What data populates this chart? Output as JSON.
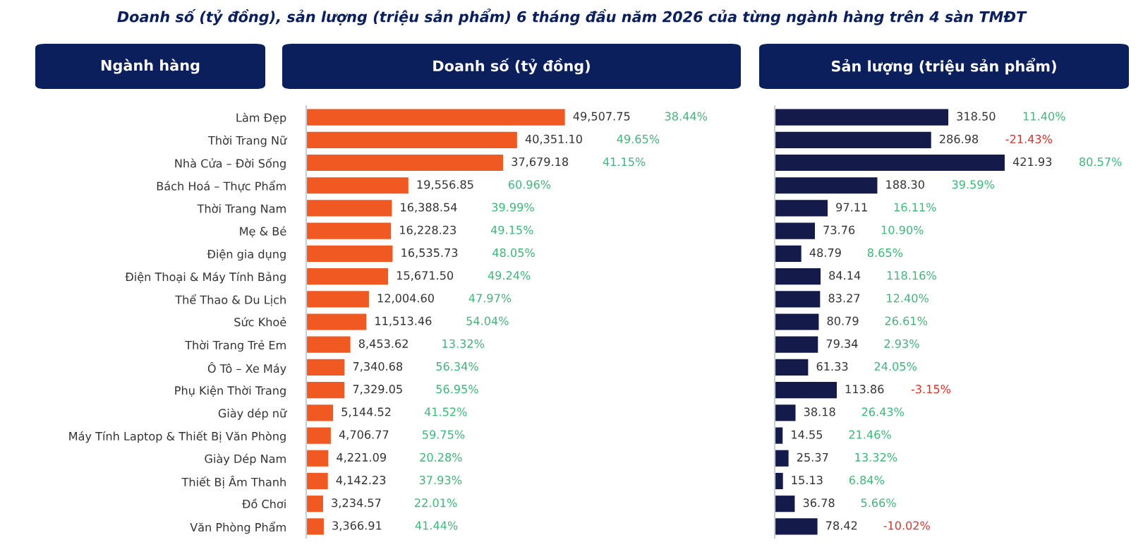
{
  "chart_data": [
    {
      "type": "bar",
      "orientation": "horizontal",
      "title": "Doanh số (tỷ đồng), sản lượng (triệu sản phẩm) 6 tháng đầu năm 2026 của từng ngành hàng trên 4 sàn TMĐT",
      "subtitle": "Doanh số (tỷ đồng)",
      "ylabel": "Ngành hàng",
      "tick_labels": "y",
      "color": "#f05a22",
      "categories": [
        "Làm Đẹp",
        "Thời Trang Nữ",
        "Nhà Cửa – Đời Sống",
        "Bách Hoá – Thực Phẩm",
        "Thời Trang Nam",
        "Mẹ & Bé",
        "Điện gia dụng",
        "Điện Thoại & Máy Tính Bảng",
        "Thể Thao & Du Lịch",
        "Sức Khoẻ",
        "Thời Trang Trẻ Em",
        "Ô Tô – Xe Máy",
        "Phụ Kiện Thời Trang",
        "Giày dép nữ",
        "Máy Tính Laptop & Thiết Bị Văn Phòng",
        "Giày Dép Nam",
        "Thiết Bị Âm Thanh",
        "Đồ Chơi",
        "Văn Phòng Phẩm"
      ],
      "values": [
        49507.75,
        40351.1,
        37679.18,
        19556.85,
        16388.54,
        16228.23,
        16535.73,
        15671.5,
        12004.6,
        11513.46,
        8453.62,
        7340.68,
        7329.05,
        5144.52,
        4706.77,
        4221.09,
        4142.23,
        3234.57,
        3366.91
      ],
      "value_labels": [
        "49,507.75",
        "40,351.10",
        "37,679.18",
        "19,556.85",
        "16,388.54",
        "16,228.23",
        "16,535.73",
        "15,671.50",
        "12,004.60",
        "11,513.46",
        "8,453.62",
        "7,340.68",
        "7,329.05",
        "5,144.52",
        "4,706.77",
        "4,221.09",
        "4,142.23",
        "3,234.57",
        "3,366.91"
      ],
      "annotations": [
        "38.44%",
        "49.65%",
        "41.15%",
        "60.96%",
        "39.99%",
        "49.15%",
        "48.05%",
        "49.24%",
        "47.97%",
        "54.04%",
        "13.32%",
        "56.34%",
        "56.95%",
        "41.52%",
        "59.75%",
        "20.28%",
        "37.93%",
        "22.01%",
        "41.44%"
      ]
    },
    {
      "type": "bar",
      "orientation": "horizontal",
      "title": "Sản lượng (triệu sản phẩm)",
      "tick_labels": false,
      "color": "#141a4a",
      "categories": [
        null,
        null,
        null,
        null,
        null,
        null,
        null,
        null,
        null,
        null,
        null,
        null,
        null,
        null,
        null,
        null,
        null,
        null,
        null
      ],
      "values": [
        318.5,
        286.98,
        421.93,
        188.3,
        97.11,
        73.76,
        48.79,
        84.14,
        83.27,
        80.79,
        79.34,
        61.33,
        113.86,
        38.18,
        14.55,
        25.37,
        15.13,
        36.78,
        78.42
      ],
      "value_labels": [
        "318.50",
        "286.98",
        "421.93",
        "188.30",
        "97.11",
        "73.76",
        "48.79",
        "84.14",
        "83.27",
        "80.79",
        "79.34",
        "61.33",
        "113.86",
        "38.18",
        "14.55",
        "25.37",
        "15.13",
        "36.78",
        "78.42"
      ],
      "annotations": [
        "11.40%",
        "-21.43%",
        "80.57%",
        "39.59%",
        "16.11%",
        "10.90%",
        "8.65%",
        "118.16%",
        "12.40%",
        "26.61%",
        "2.93%",
        "24.05%",
        "-3.15%",
        "26.43%",
        "21.46%",
        "13.32%",
        "6.84%",
        "5.66%",
        "-10.02%"
      ]
    }
  ]
}
